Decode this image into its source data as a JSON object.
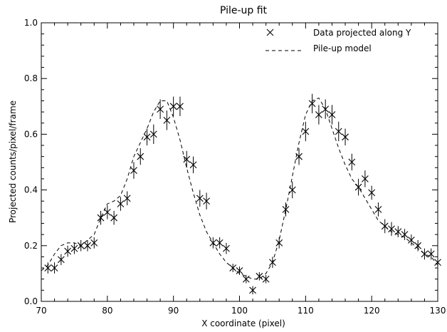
{
  "chart_data": {
    "type": "scatter",
    "title": "Pile-up fit",
    "xlabel": "X coordinate (pixel)",
    "ylabel": "Projected counts/pixel/frame",
    "xlim": [
      70,
      130
    ],
    "ylim": [
      0.0,
      1.0
    ],
    "x_ticks": [
      70,
      80,
      90,
      100,
      110,
      120,
      130
    ],
    "x_tick_labels": [
      "70",
      "80",
      "90",
      "100",
      "110",
      "120",
      "130"
    ],
    "y_ticks": [
      0.0,
      0.2,
      0.4,
      0.6,
      0.8,
      1.0
    ],
    "y_tick_labels": [
      "0.0",
      "0.2",
      "0.4",
      "0.6",
      "0.8",
      "1.0"
    ],
    "grid": false,
    "legend_position": "top-right",
    "series": [
      {
        "name": "Data projected along Y",
        "style": "x-marker-with-error-bars",
        "x": [
          71,
          72,
          73,
          74,
          75,
          76,
          77,
          78,
          79,
          80,
          81,
          82,
          83,
          84,
          85,
          86,
          87,
          88,
          89,
          90,
          91,
          92,
          93,
          94,
          95,
          96,
          97,
          98,
          99,
          100,
          101,
          102,
          103,
          104,
          105,
          106,
          107,
          108,
          109,
          110,
          111,
          112,
          113,
          114,
          115,
          116,
          117,
          118,
          119,
          120,
          121,
          122,
          123,
          124,
          125,
          126,
          127,
          128,
          129,
          130
        ],
        "y": [
          0.12,
          0.12,
          0.15,
          0.18,
          0.19,
          0.2,
          0.2,
          0.21,
          0.3,
          0.32,
          0.3,
          0.35,
          0.37,
          0.47,
          0.52,
          0.59,
          0.6,
          0.69,
          0.65,
          0.7,
          0.7,
          0.51,
          0.49,
          0.37,
          0.36,
          0.21,
          0.21,
          0.19,
          0.12,
          0.11,
          0.08,
          0.04,
          0.09,
          0.08,
          0.14,
          0.21,
          0.33,
          0.4,
          0.52,
          0.61,
          0.71,
          0.67,
          0.69,
          0.67,
          0.61,
          0.59,
          0.5,
          0.41,
          0.44,
          0.39,
          0.33,
          0.27,
          0.26,
          0.25,
          0.24,
          0.22,
          0.2,
          0.17,
          0.17,
          0.14
        ],
        "err": [
          0.02,
          0.02,
          0.02,
          0.02,
          0.02,
          0.02,
          0.02,
          0.02,
          0.025,
          0.025,
          0.025,
          0.025,
          0.025,
          0.03,
          0.03,
          0.03,
          0.035,
          0.035,
          0.035,
          0.035,
          0.035,
          0.03,
          0.03,
          0.03,
          0.03,
          0.02,
          0.02,
          0.02,
          0.015,
          0.015,
          0.015,
          0.015,
          0.015,
          0.015,
          0.02,
          0.02,
          0.025,
          0.03,
          0.03,
          0.035,
          0.035,
          0.035,
          0.035,
          0.035,
          0.035,
          0.03,
          0.03,
          0.03,
          0.03,
          0.025,
          0.025,
          0.025,
          0.025,
          0.02,
          0.02,
          0.02,
          0.02,
          0.02,
          0.02,
          0.02
        ]
      },
      {
        "name": "Pile-up model",
        "style": "dashed-line",
        "x": [
          70,
          71,
          72,
          73,
          74,
          75,
          76,
          77,
          78,
          79,
          80,
          81,
          82,
          83,
          84,
          85,
          86,
          87,
          88,
          89,
          90,
          91,
          92,
          93,
          94,
          95,
          96,
          97,
          98,
          99,
          100,
          101,
          102,
          103,
          104,
          105,
          106,
          107,
          108,
          109,
          110,
          111,
          112,
          113,
          114,
          115,
          116,
          117,
          118,
          119,
          120,
          121,
          122,
          123,
          124,
          125,
          126,
          127,
          128,
          129,
          130
        ],
        "y": [
          0.11,
          0.13,
          0.17,
          0.2,
          0.21,
          0.21,
          0.2,
          0.22,
          0.24,
          0.3,
          0.35,
          0.36,
          0.38,
          0.44,
          0.52,
          0.57,
          0.62,
          0.68,
          0.72,
          0.72,
          0.66,
          0.58,
          0.48,
          0.39,
          0.31,
          0.25,
          0.21,
          0.17,
          0.14,
          0.12,
          0.1,
          0.09,
          0.08,
          0.08,
          0.1,
          0.14,
          0.22,
          0.33,
          0.45,
          0.57,
          0.67,
          0.72,
          0.73,
          0.69,
          0.62,
          0.55,
          0.49,
          0.44,
          0.41,
          0.37,
          0.33,
          0.29,
          0.27,
          0.25,
          0.24,
          0.23,
          0.21,
          0.19,
          0.17,
          0.16,
          0.13
        ]
      }
    ]
  }
}
